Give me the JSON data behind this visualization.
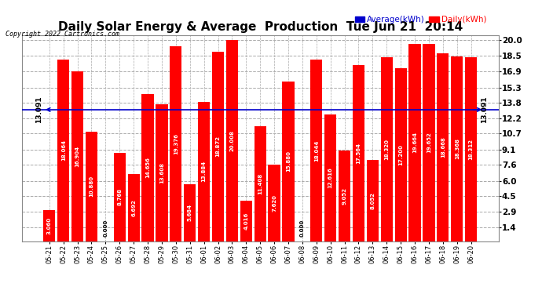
{
  "title": "Daily Solar Energy & Average  Production  Tue Jun 21  20:14",
  "copyright": "Copyright 2022 Cartronics.com",
  "categories": [
    "05-21",
    "05-22",
    "05-23",
    "05-24",
    "05-25",
    "05-26",
    "05-27",
    "05-28",
    "05-29",
    "05-30",
    "05-31",
    "06-01",
    "06-02",
    "06-03",
    "06-04",
    "06-05",
    "06-06",
    "06-07",
    "06-08",
    "06-09",
    "06-10",
    "06-11",
    "06-12",
    "06-13",
    "06-14",
    "06-15",
    "06-16",
    "06-17",
    "06-18",
    "06-19",
    "06-20"
  ],
  "values": [
    3.06,
    18.064,
    16.904,
    10.88,
    0.0,
    8.768,
    6.692,
    14.656,
    13.608,
    19.376,
    5.684,
    13.884,
    18.872,
    20.008,
    4.016,
    11.408,
    7.62,
    15.88,
    0.0,
    18.044,
    12.616,
    9.052,
    17.564,
    8.052,
    18.32,
    17.2,
    19.664,
    19.652,
    18.668,
    18.368,
    18.312
  ],
  "average": 13.091,
  "bar_color": "#ff0000",
  "average_line_color": "#0000cc",
  "average_label": "Average(kWh)",
  "daily_label": "Daily(kWh)",
  "yticks": [
    1.4,
    2.9,
    4.5,
    6.0,
    7.6,
    9.1,
    10.7,
    12.2,
    13.8,
    15.3,
    16.9,
    18.5,
    20.0
  ],
  "ylim_min": 0,
  "ylim_max": 20.5,
  "bg_color": "#ffffff",
  "plot_bg_color": "#ffffff",
  "grid_color": "#aaaaaa",
  "title_fontsize": 11,
  "bar_width": 0.85,
  "figsize": [
    6.9,
    3.75
  ],
  "dpi": 100,
  "left_label": "13.091",
  "right_label": "13.091"
}
